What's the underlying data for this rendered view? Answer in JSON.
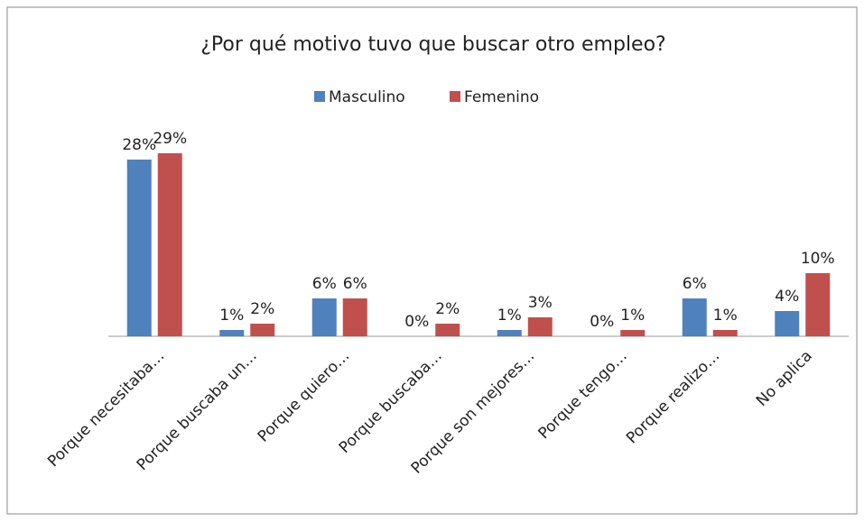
{
  "chart_data": {
    "type": "bar",
    "title": "¿Por qué motivo tuvo que buscar otro empleo?",
    "categories": [
      "Porque necesitaba…",
      "Porque buscaba un…",
      "Porque quiero…",
      "Porque buscaba…",
      "Porque son mejores…",
      "Porque tengo…",
      "Porque realizo…",
      "No aplica"
    ],
    "series": [
      {
        "name": "Masculino",
        "color": "#4f81bd",
        "values": [
          28,
          1,
          6,
          0,
          1,
          0,
          6,
          4
        ],
        "value_labels": [
          "28%",
          "1%",
          "6%",
          "0%",
          "1%",
          "0%",
          "6%",
          "4%"
        ]
      },
      {
        "name": "Femenino",
        "color": "#c0504d",
        "values": [
          29,
          2,
          6,
          2,
          3,
          1,
          1,
          10
        ],
        "value_labels": [
          "29%",
          "2%",
          "6%",
          "2%",
          "3%",
          "1%",
          "1%",
          "10%"
        ]
      }
    ],
    "legend": "top"
  }
}
